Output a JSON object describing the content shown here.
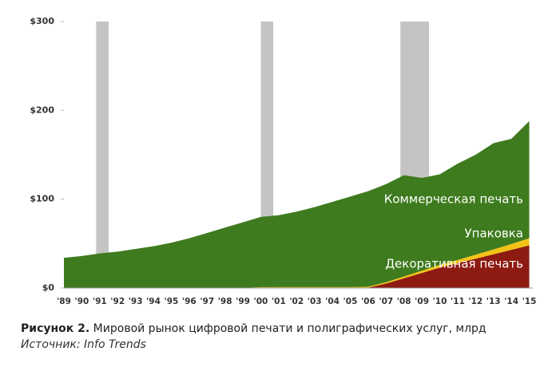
{
  "chart_data": {
    "type": "stacked_area",
    "x": [
      1989,
      1990,
      1991,
      1992,
      1993,
      1994,
      1995,
      1996,
      1997,
      1998,
      1999,
      2000,
      2001,
      2002,
      2003,
      2004,
      2005,
      2006,
      2007,
      2008,
      2009,
      2010,
      2011,
      2012,
      2013,
      2014,
      2015
    ],
    "series": [
      {
        "name": "Декоративная печать",
        "color": "#8e1b12",
        "values": [
          0,
          0,
          0,
          0,
          0,
          0,
          0,
          0,
          0,
          0,
          0,
          0,
          0,
          0,
          0,
          0,
          0,
          0.5,
          5,
          11,
          17,
          23,
          28,
          33,
          38,
          43,
          48
        ]
      },
      {
        "name": "Упаковка",
        "color": "#f2c316",
        "values": [
          0,
          0,
          0,
          0,
          0,
          0,
          0,
          0,
          0,
          0,
          0,
          1,
          1,
          1,
          1,
          1,
          1,
          1,
          1.5,
          2,
          2.5,
          3,
          3.5,
          4.5,
          5.5,
          6.5,
          8
        ]
      },
      {
        "name": "Коммерческая печать",
        "color": "#3e7b1e",
        "values": [
          34,
          36,
          39,
          41,
          44,
          47,
          51,
          56,
          62,
          68,
          74,
          79,
          81,
          85,
          90,
          96,
          102,
          107.5,
          110.5,
          114,
          104.5,
          102,
          108.5,
          112.5,
          119.5,
          118.5,
          132
        ]
      }
    ],
    "shaded_spans": [
      [
        1990.8,
        1991.5
      ],
      [
        2000,
        2000.7
      ],
      [
        2007.8,
        2009.4
      ]
    ],
    "shade_color": "#c4c4c4",
    "xlim": [
      1989,
      2015.2
    ],
    "xticks": [
      {
        "value": 1989,
        "label": "'89"
      },
      {
        "value": 1990,
        "label": "'90"
      },
      {
        "value": 1991,
        "label": "'91"
      },
      {
        "value": 1992,
        "label": "'92"
      },
      {
        "value": 1993,
        "label": "'93"
      },
      {
        "value": 1994,
        "label": "'94"
      },
      {
        "value": 1995,
        "label": "'95"
      },
      {
        "value": 1996,
        "label": "'96"
      },
      {
        "value": 1997,
        "label": "'97"
      },
      {
        "value": 1998,
        "label": "'98"
      },
      {
        "value": 1999,
        "label": "'99"
      },
      {
        "value": 2000,
        "label": "'00"
      },
      {
        "value": 2001,
        "label": "'01"
      },
      {
        "value": 2002,
        "label": "'02"
      },
      {
        "value": 2003,
        "label": "'03"
      },
      {
        "value": 2004,
        "label": "'04"
      },
      {
        "value": 2005,
        "label": "'05"
      },
      {
        "value": 2006,
        "label": "'06"
      },
      {
        "value": 2007,
        "label": "'07"
      },
      {
        "value": 2008,
        "label": "'08"
      },
      {
        "value": 2009,
        "label": "'09"
      },
      {
        "value": 2010,
        "label": "'10"
      },
      {
        "value": 2011,
        "label": "'11"
      },
      {
        "value": 2012,
        "label": "'12"
      },
      {
        "value": 2013,
        "label": "'13"
      },
      {
        "value": 2014,
        "label": "'14"
      },
      {
        "value": 2015,
        "label": "'15"
      }
    ],
    "ylim": [
      0,
      300
    ],
    "yticks": [
      {
        "value": 0,
        "label": "$0"
      },
      {
        "value": 100,
        "label": "$100"
      },
      {
        "value": 200,
        "label": "$200"
      },
      {
        "value": 300,
        "label": "$300"
      }
    ],
    "caption": {
      "label": "Рисунок 2.",
      "text": " Мировой рынок цифровой печати и полиграфических услуг, млрд",
      "source": "Источник: Info Trends"
    }
  }
}
